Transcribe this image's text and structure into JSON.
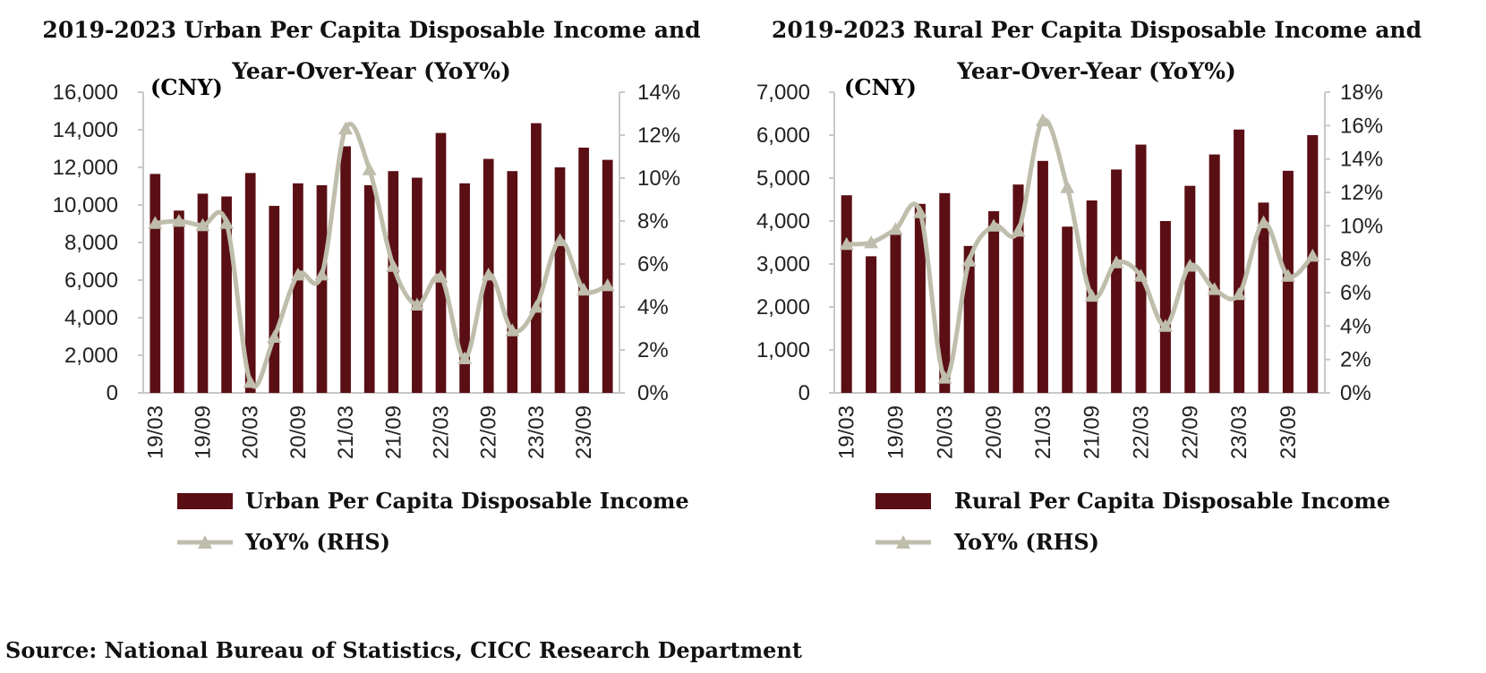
{
  "charts": [
    {
      "title_line1": "2019-2023 Urban Per Capita Disposable Income and",
      "title_line2": "Year-Over-Year (YoY%)",
      "unit": "(CNY)",
      "legend_bar": "Urban Per Capita Disposable Income",
      "legend_line": "YoY% (RHS)"
    },
    {
      "title_line1": "2019-2023 Rural Per Capita Disposable Income and",
      "title_line2": "Year-Over-Year (YoY%)",
      "unit": "(CNY)",
      "legend_bar": "Rural  Per Capita Disposable Income",
      "legend_line": "YoY% (RHS)"
    }
  ],
  "source": "Source: National Bureau of Statistics, CICC Research Department",
  "colors": {
    "bar": "#5a0f14",
    "line": "#bfbdab",
    "axis": "#c8c8c8"
  },
  "chart_data": [
    {
      "type": "bar",
      "title": "2019-2023 Urban Per Capita Disposable Income and Year-Over-Year (YoY%)",
      "categories": [
        "19/03",
        "19/06",
        "19/09",
        "19/12",
        "20/03",
        "20/06",
        "20/09",
        "20/12",
        "21/03",
        "21/06",
        "21/09",
        "21/12",
        "22/03",
        "22/06",
        "22/09",
        "22/12",
        "23/03",
        "23/06",
        "23/09",
        "23/12"
      ],
      "x_tick_labels": [
        "19/03",
        "19/09",
        "20/03",
        "20/09",
        "21/03",
        "21/09",
        "22/03",
        "22/09",
        "23/03",
        "23/09"
      ],
      "series": [
        {
          "name": "Urban Per Capita Disposable Income",
          "type": "bar",
          "axis": "left",
          "values": [
            11650,
            9700,
            10600,
            10450,
            11700,
            9950,
            11150,
            11050,
            13120,
            11050,
            11800,
            11450,
            13830,
            11150,
            12450,
            11800,
            14350,
            12000,
            13050,
            12400
          ]
        },
        {
          "name": "YoY% (RHS)",
          "type": "line",
          "axis": "right",
          "values": [
            7.9,
            8.0,
            7.8,
            7.9,
            0.5,
            2.6,
            5.5,
            5.5,
            12.3,
            10.4,
            5.9,
            4.1,
            5.4,
            1.6,
            5.5,
            2.9,
            4.0,
            7.1,
            4.8,
            5.0
          ]
        }
      ],
      "ylim_left": [
        0,
        16000
      ],
      "yticks_left": [
        "0",
        "2,000",
        "4,000",
        "6,000",
        "8,000",
        "10,000",
        "12,000",
        "14,000",
        "16,000"
      ],
      "ylim_right": [
        0,
        14
      ],
      "yticks_right": [
        "0%",
        "2%",
        "4%",
        "6%",
        "8%",
        "10%",
        "12%",
        "14%"
      ]
    },
    {
      "type": "bar",
      "title": "2019-2023 Rural Per Capita Disposable Income and Year-Over-Year (YoY%)",
      "categories": [
        "19/03",
        "19/06",
        "19/09",
        "19/12",
        "20/03",
        "20/06",
        "20/09",
        "20/12",
        "21/03",
        "21/06",
        "21/09",
        "21/12",
        "22/03",
        "22/06",
        "22/09",
        "22/12",
        "23/03",
        "23/06",
        "23/09",
        "23/12"
      ],
      "x_tick_labels": [
        "19/03",
        "19/09",
        "20/03",
        "20/09",
        "21/03",
        "21/09",
        "22/03",
        "22/09",
        "23/03",
        "23/09"
      ],
      "series": [
        {
          "name": "Rural  Per Capita Disposable Income",
          "type": "bar",
          "axis": "left",
          "values": [
            4600,
            3180,
            3700,
            4400,
            4650,
            3420,
            4230,
            4850,
            5400,
            3870,
            4480,
            5200,
            5780,
            4000,
            4820,
            5550,
            6130,
            4430,
            5170,
            6000
          ]
        },
        {
          "name": "YoY% (RHS)",
          "type": "line",
          "axis": "right",
          "values": [
            8.9,
            9.0,
            9.8,
            10.8,
            0.9,
            7.9,
            10.0,
            9.7,
            16.3,
            12.3,
            5.8,
            7.8,
            7.0,
            4.0,
            7.6,
            6.2,
            5.9,
            10.2,
            7.0,
            8.2
          ]
        }
      ],
      "ylim_left": [
        0,
        7000
      ],
      "yticks_left": [
        "0",
        "1,000",
        "2,000",
        "3,000",
        "4,000",
        "5,000",
        "6,000",
        "7,000"
      ],
      "ylim_right": [
        0,
        18
      ],
      "yticks_right": [
        "0%",
        "2%",
        "4%",
        "6%",
        "8%",
        "10%",
        "12%",
        "14%",
        "16%",
        "18%"
      ]
    }
  ]
}
